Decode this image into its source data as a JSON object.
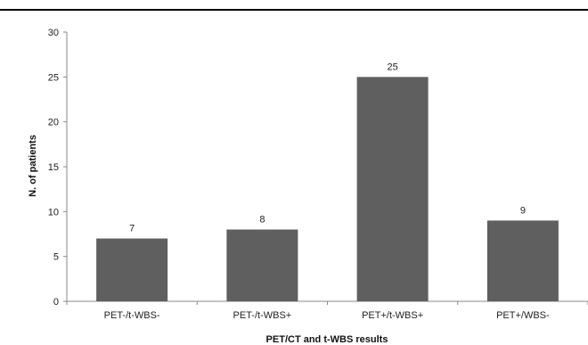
{
  "chart_data": {
    "type": "bar",
    "categories": [
      "PET-/t-WBS-",
      "PET-/t-WBS+",
      "PET+/t-WBS+",
      "PET+/WBS-"
    ],
    "values": [
      7,
      8,
      25,
      9
    ],
    "data_labels": [
      "7",
      "8",
      "25",
      "9"
    ],
    "title": "",
    "xlabel": "PET/CT and t-WBS results",
    "ylabel": "N. of patients",
    "ylim": [
      0,
      30
    ],
    "yticks": [
      "0",
      "5",
      "10",
      "15",
      "20",
      "25",
      "30"
    ],
    "grid": false,
    "bar_color": "#5f5f5f"
  }
}
